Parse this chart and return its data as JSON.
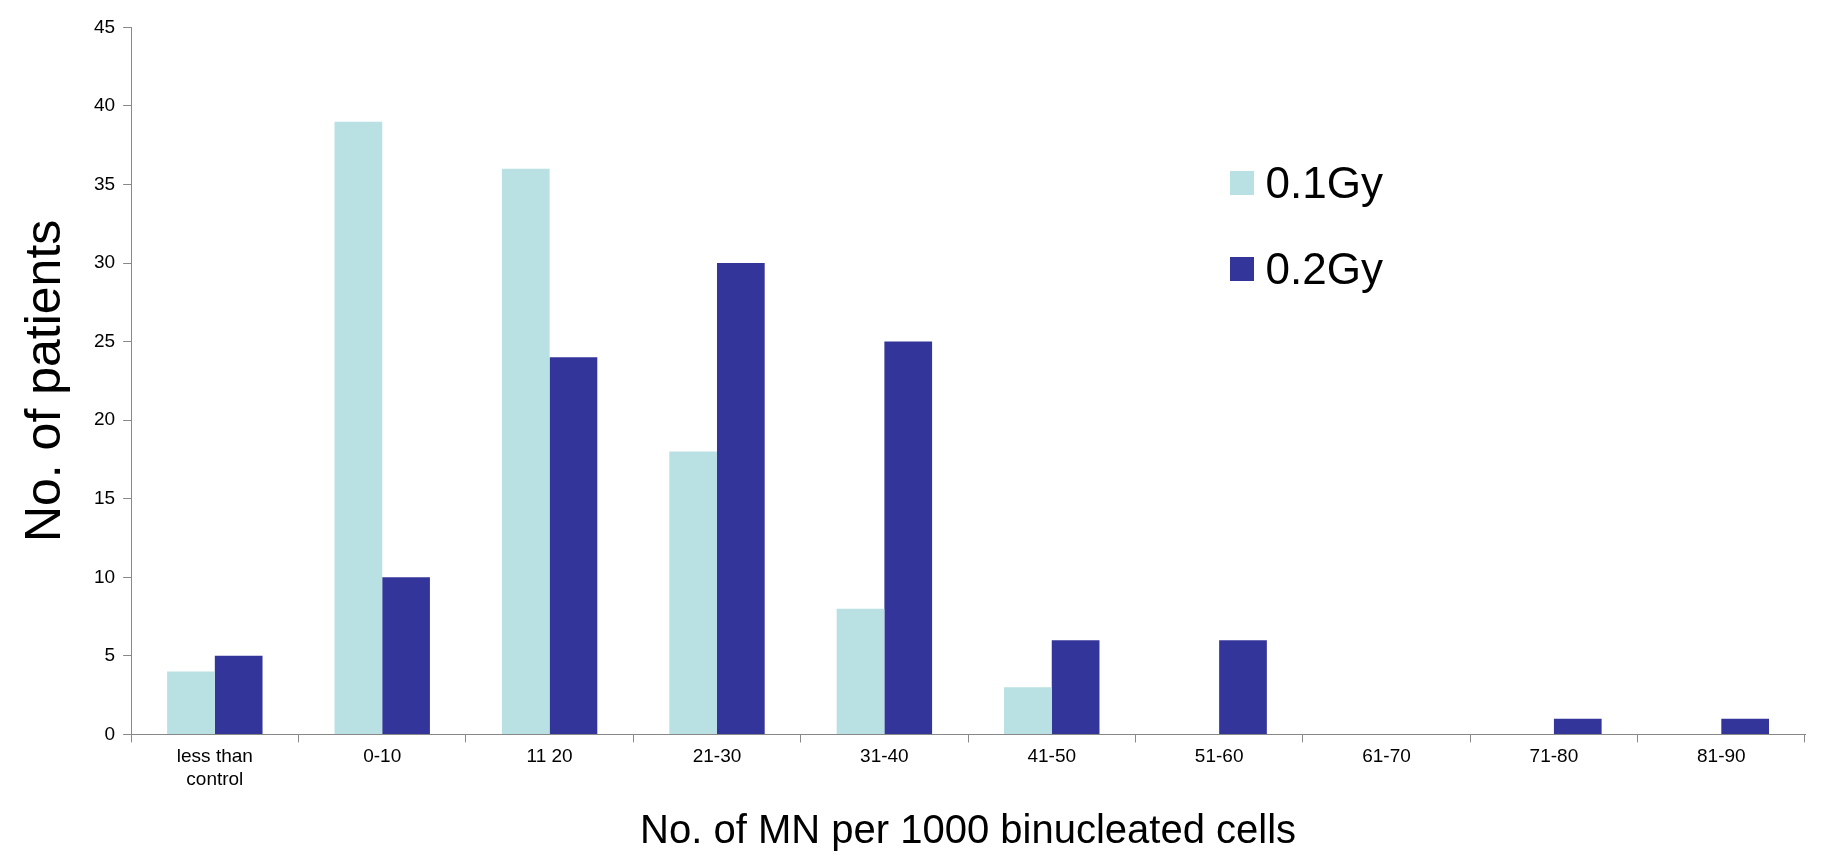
{
  "chart_data": {
    "type": "bar",
    "xlabel": "No. of MN per 1000 binucleated cells",
    "ylabel": "No. of patients",
    "categories": [
      "less than control",
      "0-10",
      "11 20",
      "21-30",
      "31-40",
      "41-50",
      "51-60",
      "61-70",
      "71-80",
      "81-90"
    ],
    "series": [
      {
        "name": "0.1Gy",
        "color": "#b9e0e3",
        "values": [
          4,
          39,
          36,
          18,
          8,
          3,
          0,
          0,
          0,
          0
        ]
      },
      {
        "name": "0.2Gy",
        "color": "#34359a",
        "values": [
          5,
          10,
          24,
          30,
          25,
          6,
          6,
          0,
          1,
          1
        ]
      }
    ],
    "ylim": [
      0,
      45
    ],
    "yticks": [
      0,
      5,
      10,
      15,
      20,
      25,
      30,
      35,
      40,
      45
    ],
    "legend": "top right"
  }
}
